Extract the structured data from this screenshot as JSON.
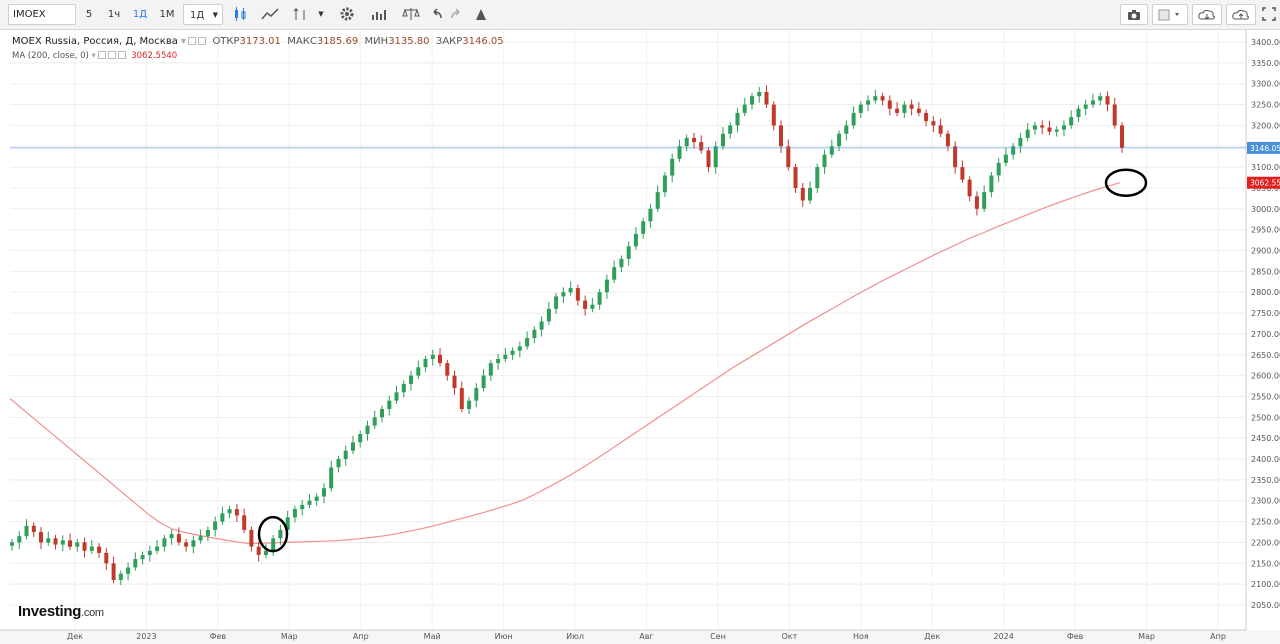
{
  "toolbar": {
    "symbol": "IMOEX",
    "intervals": [
      "5",
      "1ч",
      "1Д",
      "1М"
    ],
    "active_interval": "1Д",
    "interval_select": "1Д",
    "icons_left": [
      "candles-icon",
      "line-chart-icon",
      "indicators-icon",
      "dropdown-icon",
      "settings-icon",
      "studies-icon",
      "compare-icon",
      "undo-icon",
      "redo-icon",
      "drawing-icon"
    ],
    "icons_right": [
      "camera-icon",
      "color-box-icon",
      "cloud-icon",
      "upload-icon",
      "fullscreen-icon"
    ]
  },
  "legend": {
    "title": "MOEX Russia, Россия, Д, Москва",
    "open_label": "ОТКР",
    "open": "3173.01",
    "high_label": "МАКС",
    "high": "3185.69",
    "low_label": "МИН",
    "low": "3135.80",
    "close_label": "ЗАКР",
    "close": "3146.05",
    "ma_label": "MA (200, close, 0)",
    "ma_value": "3062.5540"
  },
  "logo": {
    "text": "Investing",
    "suffix": ".com"
  },
  "colors": {
    "up": "#2e9e5a",
    "down": "#c0392b",
    "ma": "#f28f8f",
    "price_line": "#4a90d9",
    "ma_tag": "#e02020"
  },
  "chart_data": {
    "type": "candlestick",
    "y_ticks": [
      "3400.00",
      "3350.00",
      "3300.00",
      "3250.00",
      "3200.00",
      "3150.00",
      "3100.00",
      "3050.00",
      "3000.00",
      "2950.00",
      "2900.00",
      "2850.00",
      "2800.00",
      "2750.00",
      "2700.00",
      "2650.00",
      "2600.00",
      "2550.00",
      "2500.00",
      "2450.00",
      "2400.00",
      "2350.00",
      "2300.00",
      "2250.00",
      "2200.00",
      "2150.00",
      "2100.00",
      "2050.00"
    ],
    "ylim": [
      2025,
      3425
    ],
    "x_labels": [
      "Дек",
      "2023",
      "Фев",
      "Мар",
      "Апр",
      "Май",
      "Июн",
      "Июл",
      "Авг",
      "Сен",
      "Окт",
      "Ноя",
      "Дек",
      "2024",
      "Фев",
      "Мар",
      "Апр"
    ],
    "price_tag": "3146.05",
    "ma_tag": "3062.55",
    "close_series": [
      2200,
      2215,
      2240,
      2225,
      2200,
      2210,
      2195,
      2205,
      2190,
      2200,
      2180,
      2190,
      2175,
      2150,
      2110,
      2125,
      2140,
      2160,
      2170,
      2180,
      2190,
      2210,
      2220,
      2200,
      2190,
      2205,
      2215,
      2230,
      2250,
      2270,
      2280,
      2265,
      2230,
      2190,
      2170,
      2180,
      2210,
      2230,
      2260,
      2280,
      2290,
      2300,
      2310,
      2330,
      2380,
      2400,
      2420,
      2440,
      2460,
      2480,
      2500,
      2520,
      2540,
      2560,
      2580,
      2600,
      2620,
      2640,
      2650,
      2630,
      2600,
      2570,
      2520,
      2540,
      2570,
      2600,
      2630,
      2640,
      2650,
      2660,
      2670,
      2690,
      2710,
      2730,
      2760,
      2790,
      2800,
      2810,
      2780,
      2760,
      2770,
      2800,
      2830,
      2860,
      2880,
      2910,
      2940,
      2970,
      3000,
      3040,
      3080,
      3120,
      3150,
      3170,
      3160,
      3140,
      3100,
      3150,
      3180,
      3200,
      3230,
      3250,
      3270,
      3280,
      3250,
      3200,
      3150,
      3100,
      3050,
      3020,
      3050,
      3100,
      3130,
      3150,
      3180,
      3200,
      3230,
      3250,
      3260,
      3270,
      3260,
      3240,
      3230,
      3250,
      3240,
      3230,
      3210,
      3200,
      3180,
      3150,
      3100,
      3070,
      3030,
      3000,
      3040,
      3080,
      3110,
      3130,
      3150,
      3170,
      3190,
      3200,
      3195,
      3185,
      3190,
      3200,
      3220,
      3240,
      3250,
      3260,
      3270,
      3250,
      3200,
      3146.05
    ],
    "ma_series": [
      2545,
      2520,
      2495,
      2470,
      2445,
      2420,
      2395,
      2370,
      2345,
      2320,
      2295,
      2270,
      2248,
      2232,
      2224,
      2218,
      2212,
      2207,
      2202,
      2198,
      2198,
      2199,
      2200,
      2201,
      2202,
      2203,
      2204,
      2206,
      2209,
      2212,
      2216,
      2221,
      2227,
      2233,
      2240,
      2248,
      2256,
      2264,
      2272,
      2281,
      2290,
      2300,
      2314,
      2330,
      2346,
      2363,
      2381,
      2400,
      2420,
      2440,
      2460,
      2480,
      2500,
      2520,
      2540,
      2560,
      2580,
      2600,
      2620,
      2638,
      2656,
      2674,
      2692,
      2710,
      2728,
      2745,
      2762,
      2779,
      2796,
      2812,
      2828,
      2843,
      2858,
      2873,
      2888,
      2902,
      2916,
      2930,
      2942,
      2955,
      2967,
      2979,
      2991,
      3003,
      3014,
      3025,
      3035,
      3045,
      3054,
      3062.55
    ]
  }
}
